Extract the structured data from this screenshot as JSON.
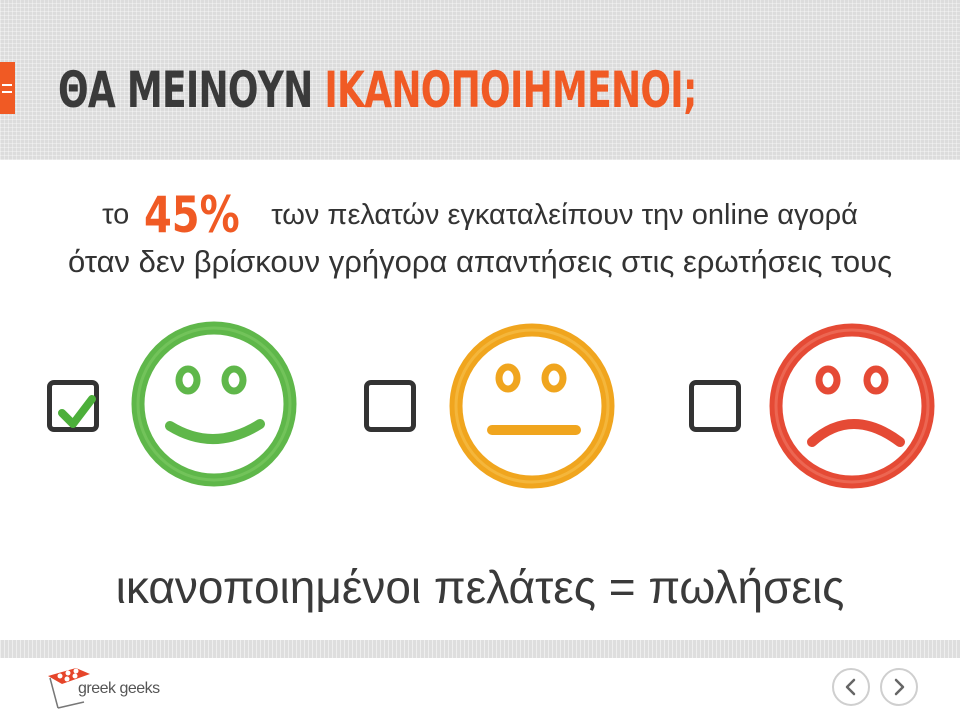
{
  "header": {
    "title_part1": "ΘΑ ΜΕΙΝΟΥΝ",
    "title_part2": "ΙΚΑΝΟΠΟΙΗΜΕΝΟΙ;",
    "menu_icon": "hamburger-icon"
  },
  "stat": {
    "prefix": "το",
    "percent": "45%",
    "suffix": "των πελατών εγκαταλείπουν την online αγορά",
    "line2": "όταν δεν βρίσκουν γρήγορα απαντήσεις στις ερωτήσεις τους"
  },
  "options": [
    {
      "face": "happy-face-icon",
      "checked": true,
      "color": "#5fb74a"
    },
    {
      "face": "neutral-face-icon",
      "checked": false,
      "color": "#f0a51e"
    },
    {
      "face": "sad-face-icon",
      "checked": false,
      "color": "#e54a35"
    }
  ],
  "bottom_text": "ικανοποιημένοι πελάτες = πωλήσεις",
  "footer": {
    "logo_text": "greek geeks"
  },
  "nav": {
    "prev_icon": "chevron-left-icon",
    "next_icon": "chevron-right-icon"
  },
  "colors": {
    "accent": "#f05a24",
    "text": "#333333",
    "header_bg": "#dcdcdc"
  }
}
